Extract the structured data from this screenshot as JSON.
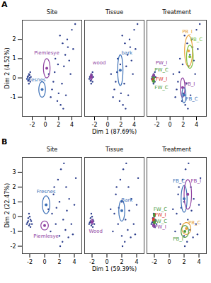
{
  "chart_data": [
    {
      "type": "scatter",
      "title": "A",
      "xlabel": "Dim 1 (87.69%)",
      "ylabel": "Dim 2 (4.52%)",
      "facets": [
        "Site",
        "Tissue",
        "Treatment"
      ],
      "xlim": [
        -3.5,
        5.5
      ],
      "ylim": [
        -2,
        3
      ],
      "xticks": [
        -2,
        0,
        2,
        4
      ],
      "yticks": [
        -1,
        0,
        1,
        2
      ],
      "points": {
        "color": "#2c3e8c",
        "x": [
          -2.6,
          -2.5,
          -2.4,
          -2.7,
          -2.5,
          -2.3,
          -2.6,
          -2.4,
          -2.2,
          -2.5,
          -2.8,
          -2.3,
          0.5,
          1.0,
          1.4,
          1.8,
          2.0,
          2.3,
          1.5,
          2.6,
          3.0,
          3.3,
          2.8,
          3.6,
          4.0,
          4.2,
          2.2,
          1.2,
          2.5,
          3.1,
          3.8,
          4.5,
          0.8,
          1.9,
          3.4,
          2.7
        ],
        "y": [
          0.1,
          -0.1,
          0,
          0.05,
          0.2,
          -0.2,
          -0.15,
          0.15,
          0.05,
          -0.3,
          -0.05,
          0.3,
          0.2,
          -0.6,
          0.3,
          -1.2,
          -0.8,
          -1.4,
          1.0,
          1.8,
          1.2,
          2.0,
          0.6,
          0.9,
          2.5,
          1.5,
          2.2,
          -0.2,
          -0.3,
          -0.9,
          0.2,
          2.8,
          -1.0,
          0.7,
          1.6,
          -1.6
        ]
      },
      "groups": [
        {
          "facet": "Site",
          "name": "Piemlesye",
          "x": 0.2,
          "y": 0.5,
          "rx": 0.5,
          "ry": 0.5,
          "color": "#8e3f9f",
          "label_x": 0.2,
          "label_y": 1.3
        },
        {
          "facet": "Site",
          "name": "Fresnes",
          "x": -0.5,
          "y": -0.6,
          "rx": 0.5,
          "ry": 0.4,
          "color": "#3b6fb6",
          "label_x": -1.4,
          "label_y": -0.1
        },
        {
          "facet": "Tissue",
          "name": "wood",
          "x": -2.5,
          "y": 0.05,
          "rx": 0.15,
          "ry": 0.15,
          "color": "#8e3f9f",
          "label_x": -1.3,
          "label_y": 0.8
        },
        {
          "facet": "Tissue",
          "name": "bark",
          "x": 1.9,
          "y": 0.4,
          "rx": 0.4,
          "ry": 0.8,
          "color": "#3b6fb6",
          "label_x": 2.9,
          "label_y": 1.3
        },
        {
          "facet": "Treatment",
          "name": "PW_I",
          "x": -2.5,
          "y": 0.1,
          "rx": 0.12,
          "ry": 0.1,
          "color": "#8e3f9f",
          "label_x": -1.3,
          "label_y": 0.8
        },
        {
          "facet": "Treatment",
          "name": "PW_C",
          "x": -2.5,
          "y": 0,
          "rx": 0.12,
          "ry": 0.1,
          "color": "#4d9a3a",
          "label_x": -1.3,
          "label_y": 0.4
        },
        {
          "facet": "Treatment",
          "name": "FW_I",
          "x": -2.6,
          "y": -0.1,
          "rx": 0.12,
          "ry": 0.1,
          "color": "#d9342b",
          "label_x": -1.3,
          "label_y": -0.05
        },
        {
          "facet": "Treatment",
          "name": "FW_C",
          "x": -2.5,
          "y": -0.15,
          "rx": 0.12,
          "ry": 0.1,
          "color": "#4d9a3a",
          "label_x": -1.3,
          "label_y": -0.5
        },
        {
          "facet": "Treatment",
          "name": "FB_I",
          "x": 1.9,
          "y": -0.5,
          "rx": 0.35,
          "ry": 0.5,
          "color": "#8e3f9f",
          "label_x": 3.0,
          "label_y": -0.3
        },
        {
          "facet": "Treatment",
          "name": "FB_C",
          "x": 2.1,
          "y": -0.9,
          "rx": 0.3,
          "ry": 0.4,
          "color": "#3b6fb6",
          "label_x": 3.3,
          "label_y": -1.1
        },
        {
          "facet": "Treatment",
          "name": "PB_I",
          "x": 2.8,
          "y": 1.4,
          "rx": 0.6,
          "ry": 0.8,
          "color": "#e8a33d",
          "label_x": 2.6,
          "label_y": 2.4
        },
        {
          "facet": "Treatment",
          "name": "PB_C",
          "x": 3.0,
          "y": 1.1,
          "rx": 0.5,
          "ry": 0.6,
          "color": "#7cbf3c",
          "label_x": 4.0,
          "label_y": 2.0
        }
      ]
    },
    {
      "type": "scatter",
      "title": "B",
      "xlabel": "Dim 1 (59.39%)",
      "ylabel": "Dim 2 (22.47%)",
      "facets": [
        "Site",
        "Tissue",
        "Treatment"
      ],
      "xlim": [
        -3,
        5
      ],
      "ylim": [
        -2.5,
        4
      ],
      "xticks": [
        -2,
        0,
        2,
        4
      ],
      "yticks": [
        -2,
        -1,
        0,
        1,
        2,
        3
      ],
      "points": {
        "color": "#2c3e8c",
        "x": [
          -2.2,
          -2,
          -1.9,
          -2.1,
          -2.3,
          -1.8,
          -2,
          -2.2,
          -1.9,
          -2.1,
          -2.4,
          -1.7,
          0.5,
          1.2,
          1.8,
          2.2,
          2.6,
          2.0,
          2.9,
          3.3,
          1.5,
          2.0,
          2.4,
          2.8,
          3.2,
          3.6,
          1.0,
          0.8,
          3.0,
          4.0,
          1.6,
          2.5,
          1.3,
          3.8,
          2.1,
          4.2
        ],
        "y": [
          -0.3,
          -0.5,
          -0.2,
          -0.6,
          -0.4,
          -0.3,
          0,
          -0.1,
          -0.7,
          0.2,
          -0.5,
          -0.5,
          0.5,
          1.5,
          2.5,
          3.2,
          3.6,
          1.0,
          2.0,
          1.2,
          -0.5,
          -1.3,
          -1.7,
          -0.9,
          -1.4,
          -0.5,
          0.2,
          -1.0,
          0.4,
          0.8,
          0.6,
          -0.2,
          2.0,
          -1.2,
          -2.0,
          2.6
        ]
      },
      "groups": [
        {
          "facet": "Site",
          "name": "Fresnes",
          "x": 0.2,
          "y": 0.8,
          "rx": 0.5,
          "ry": 0.6,
          "color": "#3b6fb6",
          "label_x": 0.2,
          "label_y": 1.7
        },
        {
          "facet": "Site",
          "name": "Piemlesye",
          "x": 0,
          "y": -0.6,
          "rx": 0.5,
          "ry": 0.3,
          "color": "#8e3f9f",
          "label_x": 0.2,
          "label_y": -1.3
        },
        {
          "facet": "Tissue",
          "name": "Wood",
          "x": -2,
          "y": -0.35,
          "rx": 0.15,
          "ry": 0.15,
          "color": "#8e3f9f",
          "label_x": -1.5,
          "label_y": -1.0
        },
        {
          "facet": "Tissue",
          "name": "Bark",
          "x": 2,
          "y": 0.4,
          "rx": 0.4,
          "ry": 0.7,
          "color": "#3b6fb6",
          "label_x": 2.7,
          "label_y": 1.1
        },
        {
          "facet": "Treatment",
          "name": "FB_C",
          "x": 2.0,
          "y": 1.2,
          "rx": 0.4,
          "ry": 0.9,
          "color": "#3b6fb6",
          "label_x": 1.3,
          "label_y": 2.4
        },
        {
          "facet": "Treatment",
          "name": "FB_I",
          "x": 2.5,
          "y": 1.5,
          "rx": 0.5,
          "ry": 1.0,
          "color": "#8e3f9f",
          "label_x": 3.6,
          "label_y": 2.4
        },
        {
          "facet": "Treatment",
          "name": "PB_C",
          "x": 2.3,
          "y": -0.8,
          "rx": 0.6,
          "ry": 0.4,
          "color": "#e8a33d",
          "label_x": 3.4,
          "label_y": -0.4
        },
        {
          "facet": "Treatment",
          "name": "PB_I",
          "x": 2.1,
          "y": -1.0,
          "rx": 0.5,
          "ry": 0.4,
          "color": "#4d9a3a",
          "label_x": 1.2,
          "label_y": -1.5
        },
        {
          "facet": "Treatment",
          "name": "FW_C",
          "x": -2,
          "y": 0.1,
          "rx": 0.12,
          "ry": 0.12,
          "color": "#4d9a3a",
          "label_x": -1.2,
          "label_y": 0.5
        },
        {
          "facet": "Treatment",
          "name": "FW_I",
          "x": -2.1,
          "y": -0.2,
          "rx": 0.12,
          "ry": 0.12,
          "color": "#d9342b",
          "label_x": -1.2,
          "label_y": 0.1
        },
        {
          "facet": "Treatment",
          "name": "PW_C",
          "x": -2,
          "y": -0.4,
          "rx": 0.12,
          "ry": 0.12,
          "color": "#4d9a3a",
          "label_x": -1.2,
          "label_y": -0.3
        },
        {
          "facet": "Treatment",
          "name": "PW_I",
          "x": -2.1,
          "y": -0.6,
          "rx": 0.12,
          "ry": 0.12,
          "color": "#8e3f9f",
          "label_x": -1.2,
          "label_y": -0.7
        }
      ]
    }
  ]
}
